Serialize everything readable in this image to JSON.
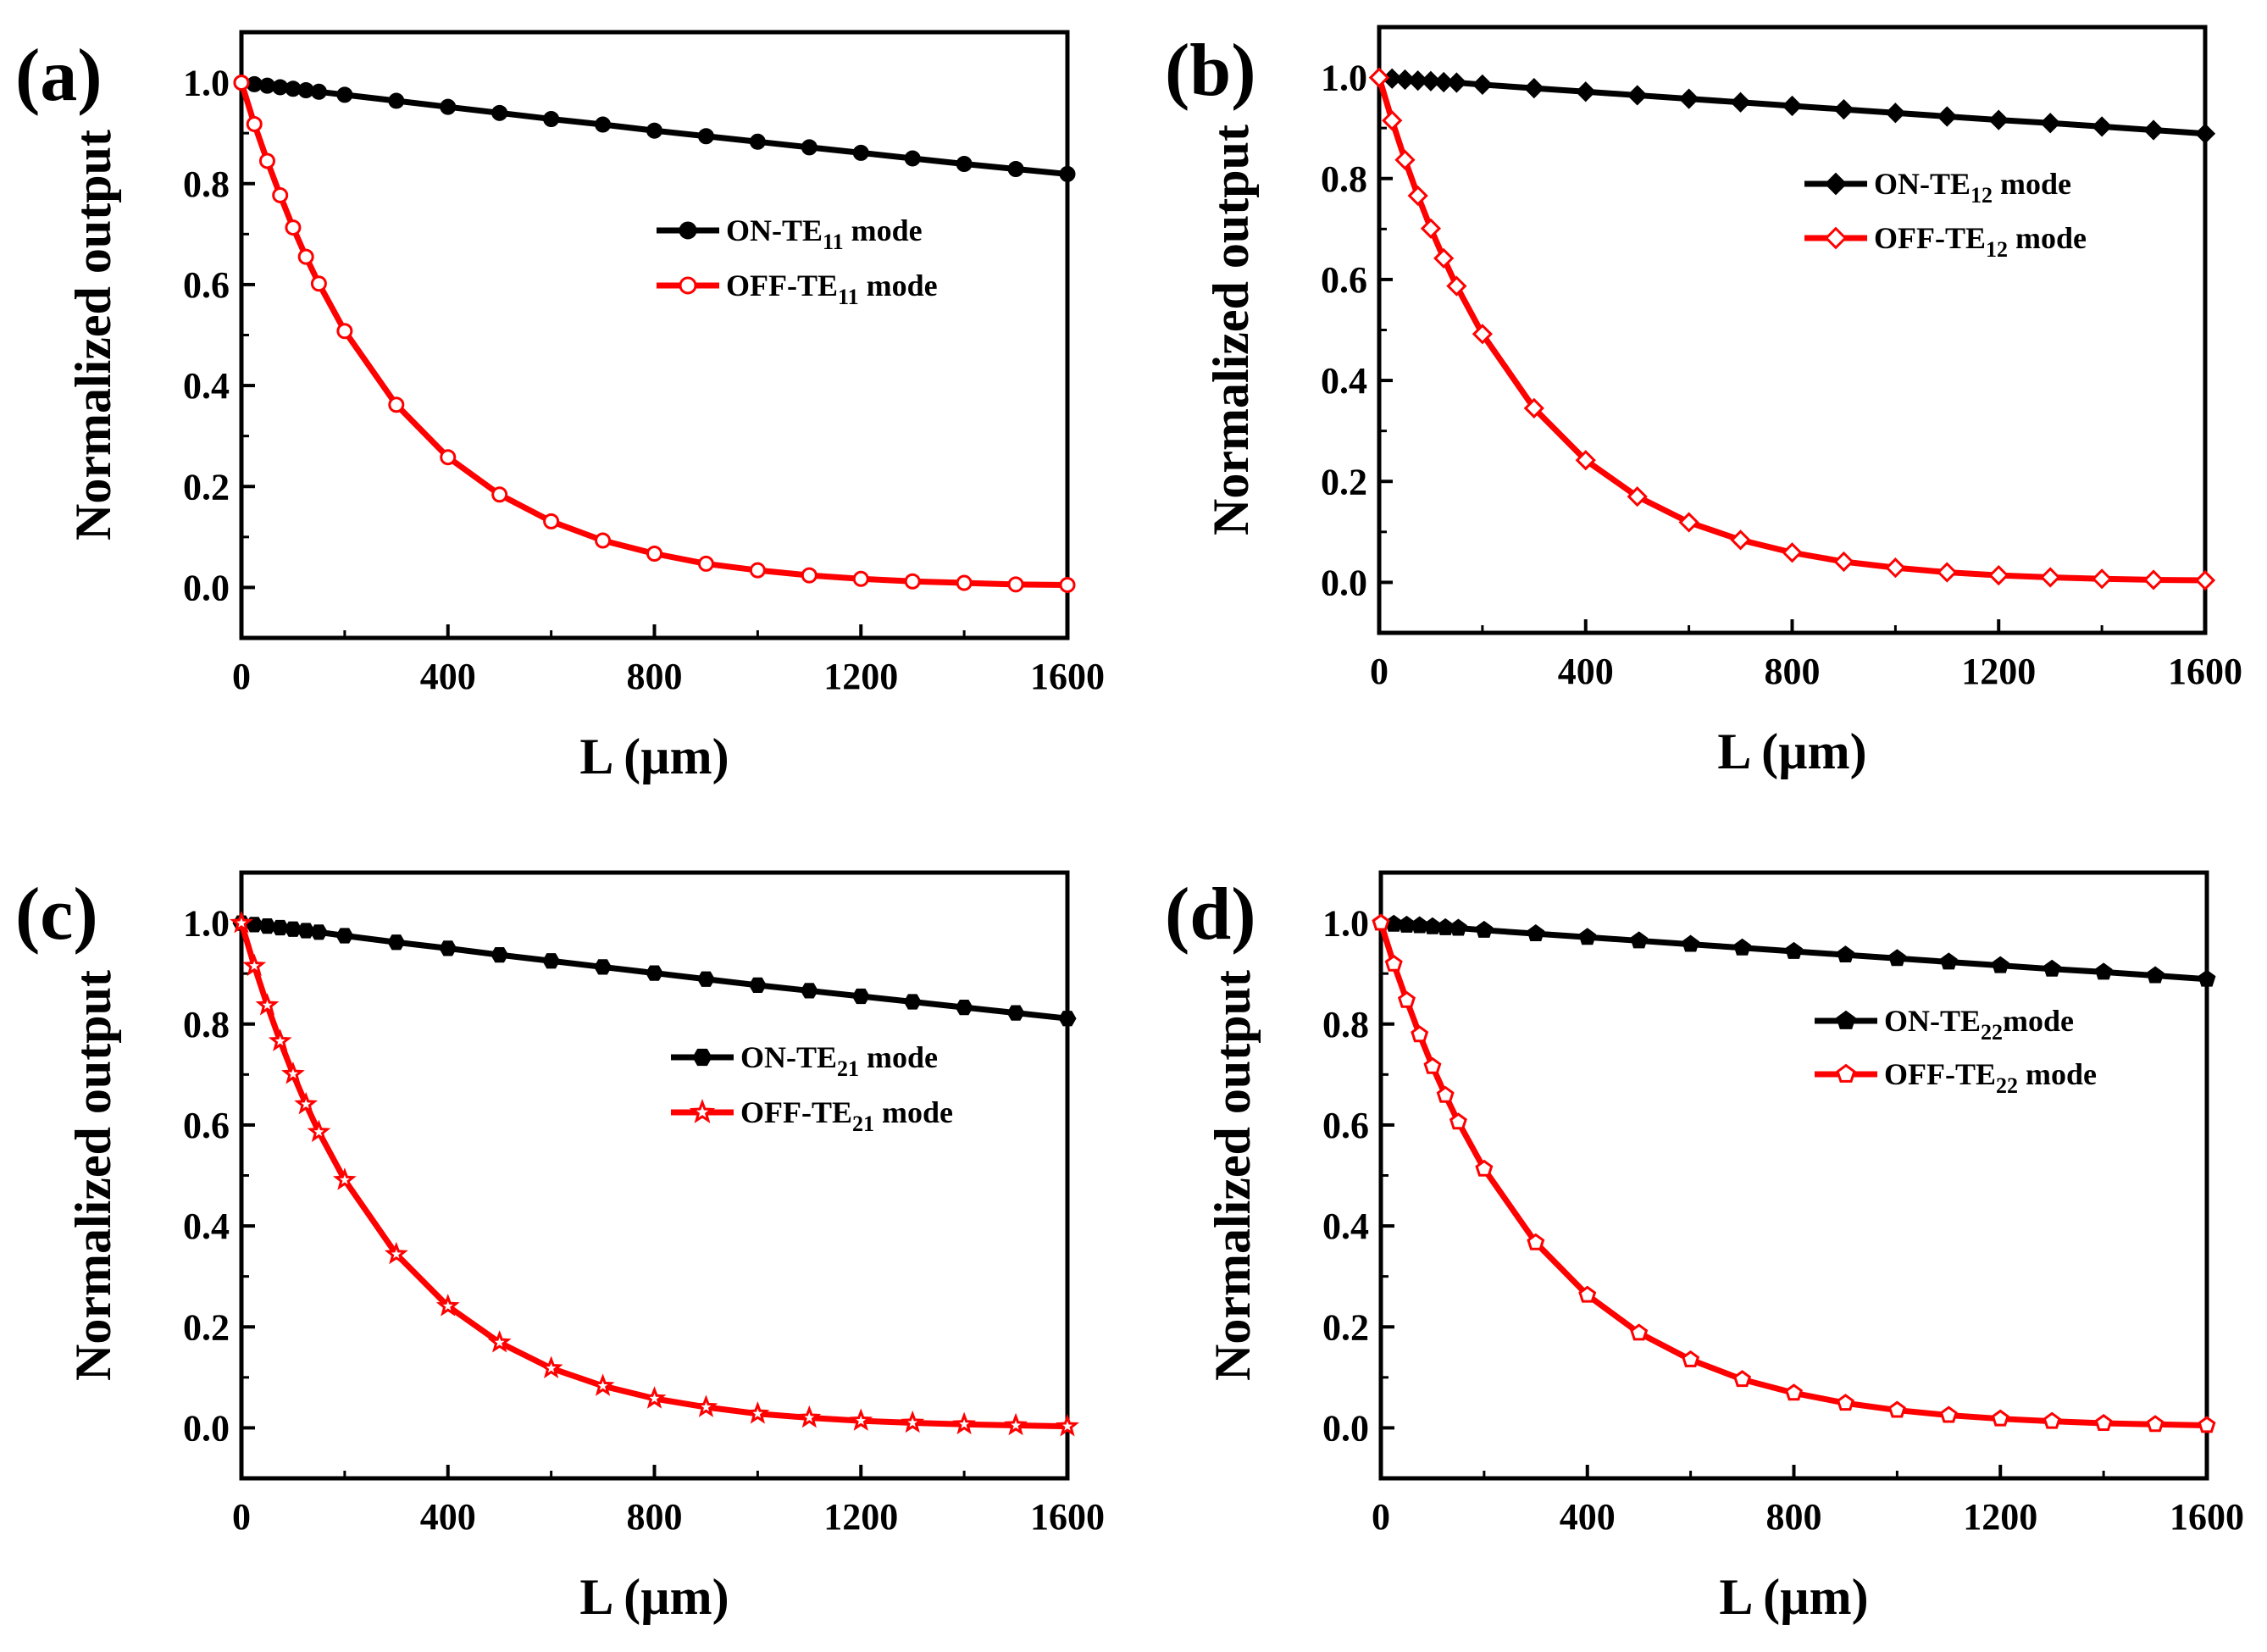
{
  "chart_data": [
    {
      "panel": "(a)",
      "type": "line",
      "xlabel": "L (µm)",
      "ylabel": "Normalized output",
      "xlim": [
        0,
        1600
      ],
      "ylim": [
        -0.1,
        1.1
      ],
      "xticks": [
        "0",
        "400",
        "800",
        "1200",
        "1600"
      ],
      "yticks": [
        "0.0",
        "0.2",
        "0.4",
        "0.6",
        "0.8",
        "1.0"
      ],
      "legend_position": "right-middle",
      "x": [
        0,
        25,
        50,
        75,
        100,
        125,
        150,
        200,
        300,
        400,
        500,
        600,
        700,
        800,
        900,
        1000,
        1100,
        1200,
        1300,
        1400,
        1500,
        1600
      ],
      "series": [
        {
          "name": "ON-TE11 mode",
          "label_main": "ON-TE",
          "label_sub": "11",
          "label_tail": " mode",
          "color": "#000000",
          "marker": "circle",
          "filled": true,
          "values": [
            1.0,
            0.997,
            0.994,
            0.991,
            0.988,
            0.985,
            0.982,
            0.976,
            0.964,
            0.952,
            0.94,
            0.928,
            0.917,
            0.905,
            0.894,
            0.883,
            0.872,
            0.861,
            0.85,
            0.839,
            0.829,
            0.819
          ]
        },
        {
          "name": "OFF-TE11 mode",
          "label_main": "OFF-TE",
          "label_sub": "11",
          "label_tail": " mode",
          "color": "#ff0000",
          "marker": "circle",
          "filled": false,
          "values": [
            1.0,
            0.918,
            0.845,
            0.777,
            0.713,
            0.655,
            0.602,
            0.508,
            0.362,
            0.258,
            0.184,
            0.131,
            0.093,
            0.067,
            0.047,
            0.034,
            0.024,
            0.017,
            0.012,
            0.009,
            0.006,
            0.005
          ]
        }
      ]
    },
    {
      "panel": "(b)",
      "type": "line",
      "xlabel": "L (µm)",
      "ylabel": "Normalized output",
      "xlim": [
        0,
        1600
      ],
      "ylim": [
        -0.1,
        1.1
      ],
      "xticks": [
        "0",
        "400",
        "800",
        "1200",
        "1600"
      ],
      "yticks": [
        "0.0",
        "0.2",
        "0.4",
        "0.6",
        "0.8",
        "1.0"
      ],
      "legend_position": "top-right",
      "x": [
        0,
        25,
        50,
        75,
        100,
        125,
        150,
        200,
        300,
        400,
        500,
        600,
        700,
        800,
        900,
        1000,
        1100,
        1200,
        1300,
        1400,
        1500,
        1600
      ],
      "series": [
        {
          "name": "ON-TE12 mode",
          "label_main": "ON-TE",
          "label_sub": "12",
          "label_tail": " mode",
          "color": "#000000",
          "marker": "diamond",
          "filled": true,
          "values": [
            1.0,
            0.998,
            0.996,
            0.994,
            0.993,
            0.991,
            0.99,
            0.986,
            0.979,
            0.972,
            0.965,
            0.958,
            0.951,
            0.944,
            0.937,
            0.93,
            0.923,
            0.916,
            0.91,
            0.903,
            0.896,
            0.889
          ]
        },
        {
          "name": "OFF-TE12 mode",
          "label_main": "OFF-TE",
          "label_sub": "12",
          "label_tail": " mode",
          "color": "#ff0000",
          "marker": "diamond",
          "filled": false,
          "values": [
            1.0,
            0.915,
            0.837,
            0.766,
            0.701,
            0.642,
            0.587,
            0.492,
            0.345,
            0.242,
            0.17,
            0.119,
            0.084,
            0.059,
            0.041,
            0.029,
            0.02,
            0.014,
            0.01,
            0.007,
            0.005,
            0.004
          ]
        }
      ]
    },
    {
      "panel": "(c)",
      "type": "line",
      "xlabel": "L (µm)",
      "ylabel": "Normalized output",
      "xlim": [
        0,
        1600
      ],
      "ylim": [
        -0.1,
        1.1
      ],
      "xticks": [
        "0",
        "400",
        "800",
        "1200",
        "1600"
      ],
      "yticks": [
        "0.0",
        "0.2",
        "0.4",
        "0.6",
        "0.8",
        "1.0"
      ],
      "legend_position": "right-middle",
      "x": [
        0,
        25,
        50,
        75,
        100,
        125,
        150,
        200,
        300,
        400,
        500,
        600,
        700,
        800,
        900,
        1000,
        1100,
        1200,
        1300,
        1400,
        1500,
        1600
      ],
      "series": [
        {
          "name": "ON-TE21 mode",
          "label_main": "ON-TE",
          "label_sub": "21",
          "label_tail": " mode",
          "color": "#000000",
          "marker": "hexagon",
          "filled": true,
          "values": [
            1.0,
            0.997,
            0.994,
            0.991,
            0.988,
            0.985,
            0.982,
            0.975,
            0.962,
            0.95,
            0.937,
            0.925,
            0.913,
            0.901,
            0.889,
            0.877,
            0.866,
            0.855,
            0.844,
            0.833,
            0.822,
            0.811
          ]
        },
        {
          "name": "OFF-TE21 mode",
          "label_main": "OFF-TE",
          "label_sub": "21",
          "label_tail": " mode",
          "color": "#ff0000",
          "marker": "star",
          "filled": false,
          "values": [
            1.0,
            0.915,
            0.837,
            0.766,
            0.701,
            0.641,
            0.586,
            0.491,
            0.344,
            0.241,
            0.169,
            0.118,
            0.083,
            0.058,
            0.041,
            0.028,
            0.02,
            0.014,
            0.01,
            0.007,
            0.005,
            0.003
          ]
        }
      ]
    },
    {
      "panel": "(d)",
      "type": "line",
      "xlabel": "L (µm)",
      "ylabel": "Normalized output",
      "xlim": [
        0,
        1600
      ],
      "ylim": [
        -0.1,
        1.1
      ],
      "xticks": [
        "0",
        "400",
        "800",
        "1200",
        "1600"
      ],
      "yticks": [
        "0.0",
        "0.2",
        "0.4",
        "0.6",
        "0.8",
        "1.0"
      ],
      "legend_position": "right-middle",
      "x": [
        0,
        25,
        50,
        75,
        100,
        125,
        150,
        200,
        300,
        400,
        500,
        600,
        700,
        800,
        900,
        1000,
        1100,
        1200,
        1300,
        1400,
        1500,
        1600
      ],
      "series": [
        {
          "name": "ON-TE22mode",
          "label_main": "ON-TE",
          "label_sub": "22",
          "label_tail": "mode",
          "color": "#000000",
          "marker": "pentagon",
          "filled": true,
          "values": [
            1.0,
            0.998,
            0.996,
            0.995,
            0.993,
            0.991,
            0.99,
            0.986,
            0.979,
            0.972,
            0.965,
            0.958,
            0.951,
            0.944,
            0.937,
            0.93,
            0.923,
            0.916,
            0.909,
            0.903,
            0.896,
            0.889
          ]
        },
        {
          "name": "OFF-TE22 mode",
          "label_main": "OFF-TE",
          "label_sub": "22",
          "label_tail": " mode",
          "color": "#ff0000",
          "marker": "pentagon",
          "filled": false,
          "values": [
            1.0,
            0.919,
            0.847,
            0.779,
            0.716,
            0.659,
            0.606,
            0.513,
            0.367,
            0.263,
            0.188,
            0.135,
            0.096,
            0.069,
            0.049,
            0.035,
            0.025,
            0.018,
            0.013,
            0.009,
            0.007,
            0.005
          ]
        }
      ]
    }
  ]
}
